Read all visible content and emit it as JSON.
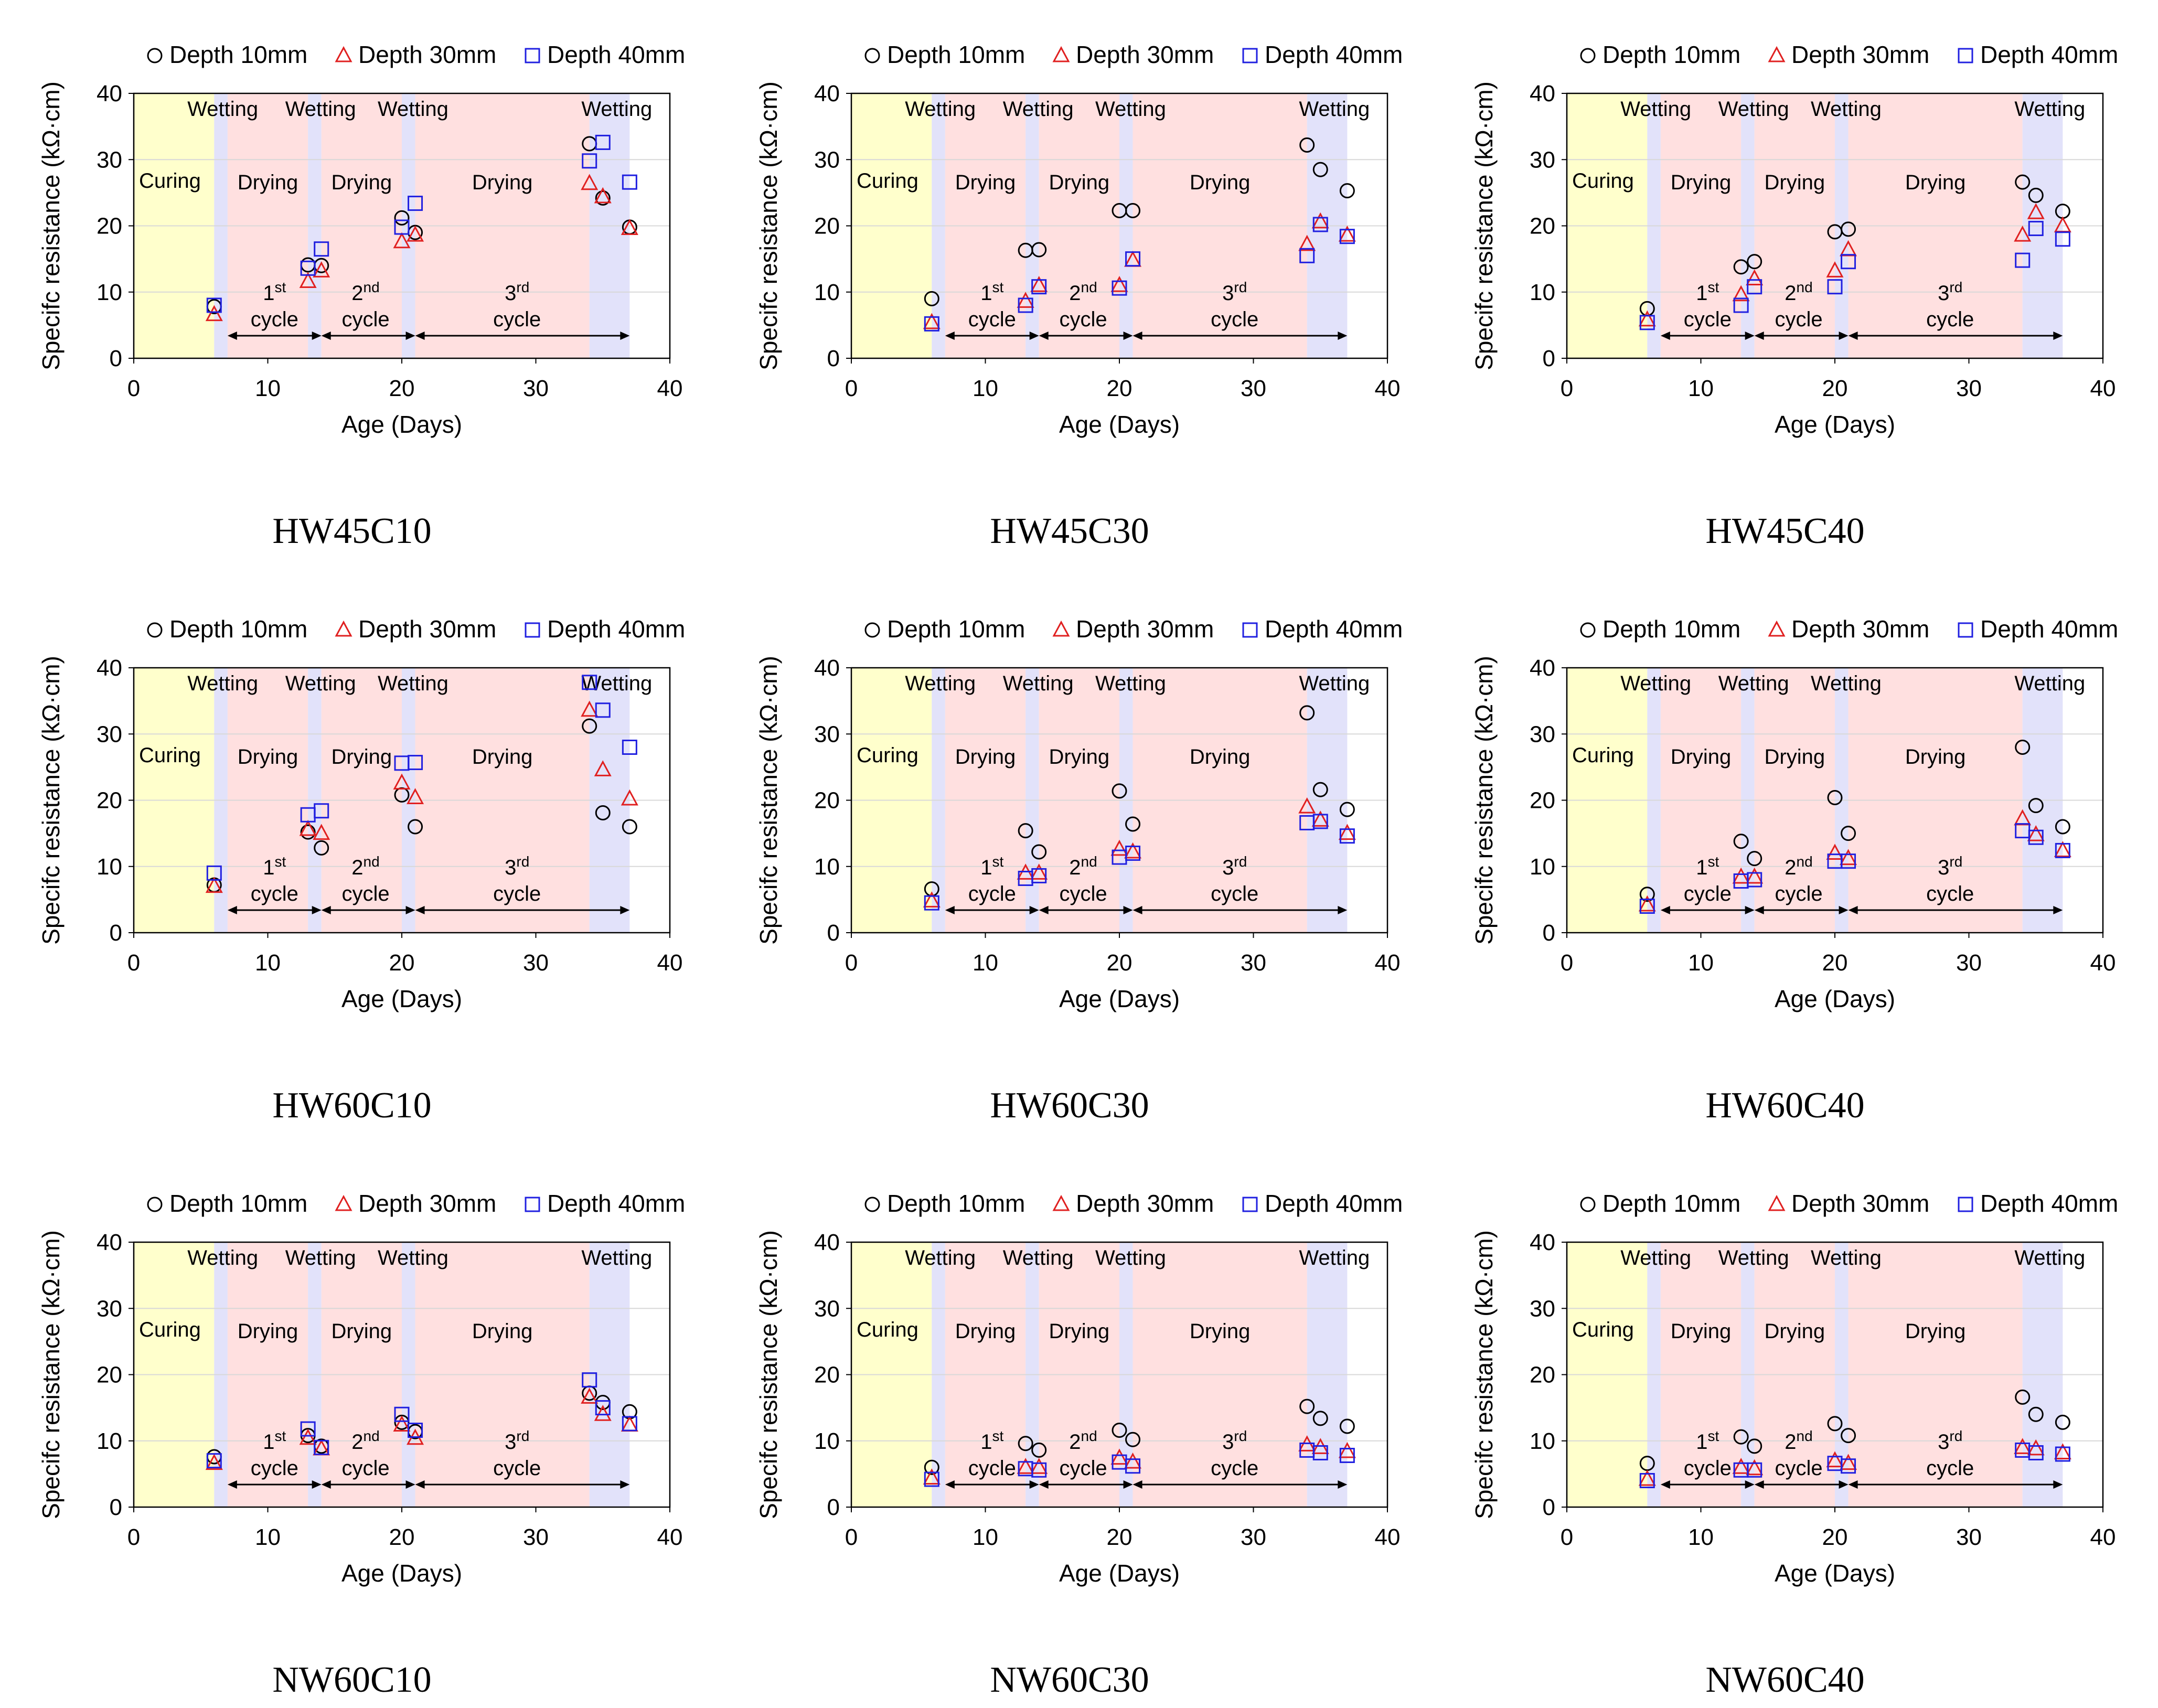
{
  "figure": {
    "x_label": "Age (Days)",
    "y_label": "Specifc resistance (kΩ·cm)",
    "legend": [
      {
        "label": "Depth 10mm",
        "marker": "circle",
        "color": "#000000"
      },
      {
        "label": "Depth 30mm",
        "marker": "triangle",
        "color": "#e02020"
      },
      {
        "label": "Depth 40mm",
        "marker": "square",
        "color": "#2020e0"
      }
    ],
    "phase_labels": {
      "curing": "Curing",
      "wetting": "Wetting",
      "drying": "Drying"
    },
    "cycle_labels": [
      {
        "num": "1",
        "sup": "st",
        "word": "cycle"
      },
      {
        "num": "2",
        "sup": "nd",
        "word": "cycle"
      },
      {
        "num": "3",
        "sup": "rd",
        "word": "cycle"
      }
    ],
    "colors": {
      "curing": "#ffffcc",
      "drying": "#ffe0e0",
      "wetting": "#e2e2fa"
    }
  },
  "chart_data": [
    {
      "type": "scatter",
      "title": "HW45C10",
      "xlim": [
        0,
        40
      ],
      "ylim": [
        0,
        40
      ],
      "xticks": [
        "0",
        "10",
        "20",
        "30",
        "40"
      ],
      "yticks": [
        "0",
        "10",
        "20",
        "30",
        "40"
      ],
      "x": [
        6,
        13,
        14,
        20,
        21,
        34,
        35,
        37
      ],
      "series": [
        {
          "name": "Depth 10mm",
          "values": [
            7.8,
            14.1,
            14.0,
            21.2,
            19.0,
            32.4,
            24.2,
            19.8
          ]
        },
        {
          "name": "Depth 30mm",
          "values": [
            6.6,
            11.6,
            13.2,
            17.6,
            18.6,
            26.4,
            24.4,
            19.6
          ]
        },
        {
          "name": "Depth 40mm",
          "values": [
            8.0,
            13.6,
            16.5,
            19.8,
            23.4,
            29.8,
            32.6,
            26.6
          ]
        }
      ]
    },
    {
      "type": "scatter",
      "title": "HW45C30",
      "xlim": [
        0,
        40
      ],
      "ylim": [
        0,
        40
      ],
      "xticks": [
        "0",
        "10",
        "20",
        "30",
        "40"
      ],
      "yticks": [
        "0",
        "10",
        "20",
        "30",
        "40"
      ],
      "x": [
        6,
        13,
        14,
        20,
        21,
        34,
        35,
        37
      ],
      "series": [
        {
          "name": "Depth 10mm",
          "values": [
            9.0,
            16.3,
            16.4,
            22.3,
            22.3,
            32.2,
            28.5,
            25.3
          ]
        },
        {
          "name": "Depth 30mm",
          "values": [
            5.4,
            8.6,
            11.0,
            11.0,
            14.8,
            17.2,
            20.6,
            18.6
          ]
        },
        {
          "name": "Depth 40mm",
          "values": [
            5.2,
            8.0,
            10.8,
            10.6,
            15.0,
            15.5,
            20.2,
            18.4
          ]
        }
      ]
    },
    {
      "type": "scatter",
      "title": "HW45C40",
      "xlim": [
        0,
        40
      ],
      "ylim": [
        0,
        40
      ],
      "xticks": [
        "0",
        "10",
        "20",
        "30",
        "40"
      ],
      "yticks": [
        "0",
        "10",
        "20",
        "30",
        "40"
      ],
      "x": [
        6,
        13,
        14,
        20,
        21,
        34,
        35,
        37
      ],
      "series": [
        {
          "name": "Depth 10mm",
          "values": [
            7.5,
            13.8,
            14.6,
            19.1,
            19.5,
            26.6,
            24.6,
            22.2
          ]
        },
        {
          "name": "Depth 30mm",
          "values": [
            5.8,
            9.6,
            12.0,
            13.2,
            16.4,
            18.6,
            22.0,
            20.0
          ]
        },
        {
          "name": "Depth 40mm",
          "values": [
            5.4,
            8.0,
            10.8,
            10.8,
            14.6,
            14.8,
            19.6,
            18.0
          ]
        }
      ]
    },
    {
      "type": "scatter",
      "title": "HW60C10",
      "xlim": [
        0,
        40
      ],
      "ylim": [
        0,
        40
      ],
      "xticks": [
        "0",
        "10",
        "20",
        "30",
        "40"
      ],
      "yticks": [
        "0",
        "10",
        "20",
        "30",
        "40"
      ],
      "x": [
        6,
        13,
        14,
        20,
        21,
        34,
        35,
        37
      ],
      "series": [
        {
          "name": "Depth 10mm",
          "values": [
            7.2,
            15.2,
            12.8,
            20.8,
            16.0,
            31.2,
            18.1,
            16.0
          ]
        },
        {
          "name": "Depth 30mm",
          "values": [
            7.0,
            15.6,
            15.0,
            22.6,
            20.4,
            33.6,
            24.6,
            20.2
          ]
        },
        {
          "name": "Depth 40mm",
          "values": [
            9.0,
            17.8,
            18.4,
            25.6,
            25.7,
            37.8,
            33.6,
            28.0
          ]
        }
      ]
    },
    {
      "type": "scatter",
      "title": "HW60C30",
      "xlim": [
        0,
        40
      ],
      "ylim": [
        0,
        40
      ],
      "xticks": [
        "0",
        "10",
        "20",
        "30",
        "40"
      ],
      "yticks": [
        "0",
        "10",
        "20",
        "30",
        "40"
      ],
      "x": [
        6,
        13,
        14,
        20,
        21,
        34,
        35,
        37
      ],
      "series": [
        {
          "name": "Depth 10mm",
          "values": [
            6.6,
            15.4,
            12.2,
            21.4,
            16.4,
            33.2,
            21.6,
            18.6
          ]
        },
        {
          "name": "Depth 30mm",
          "values": [
            4.8,
            9.0,
            9.0,
            12.6,
            12.2,
            19.0,
            17.0,
            15.0
          ]
        },
        {
          "name": "Depth 40mm",
          "values": [
            4.5,
            8.2,
            8.6,
            11.4,
            12.0,
            16.6,
            16.8,
            14.6
          ]
        }
      ]
    },
    {
      "type": "scatter",
      "title": "HW60C40",
      "xlim": [
        0,
        40
      ],
      "ylim": [
        0,
        40
      ],
      "xticks": [
        "0",
        "10",
        "20",
        "30",
        "40"
      ],
      "yticks": [
        "0",
        "10",
        "20",
        "30",
        "40"
      ],
      "x": [
        6,
        13,
        14,
        20,
        21,
        34,
        35,
        37
      ],
      "series": [
        {
          "name": "Depth 10mm",
          "values": [
            5.8,
            13.8,
            11.2,
            20.4,
            15.0,
            28.0,
            19.2,
            16.0
          ]
        },
        {
          "name": "Depth 30mm",
          "values": [
            4.2,
            8.4,
            8.4,
            12.0,
            11.2,
            17.2,
            14.8,
            12.4
          ]
        },
        {
          "name": "Depth 40mm",
          "values": [
            4.0,
            7.8,
            8.0,
            10.8,
            10.8,
            15.4,
            14.4,
            12.4
          ]
        }
      ]
    },
    {
      "type": "scatter",
      "title": "NW60C10",
      "xlim": [
        0,
        40
      ],
      "ylim": [
        0,
        40
      ],
      "xticks": [
        "0",
        "10",
        "20",
        "30",
        "40"
      ],
      "yticks": [
        "0",
        "10",
        "20",
        "30",
        "40"
      ],
      "x": [
        6,
        13,
        14,
        20,
        21,
        34,
        35,
        37
      ],
      "series": [
        {
          "name": "Depth 10mm",
          "values": [
            7.6,
            10.8,
            9.2,
            12.8,
            11.4,
            17.2,
            15.8,
            14.4
          ]
        },
        {
          "name": "Depth 30mm",
          "values": [
            6.6,
            10.4,
            8.8,
            12.4,
            10.4,
            16.6,
            14.0,
            12.4
          ]
        },
        {
          "name": "Depth 40mm",
          "values": [
            7.0,
            11.8,
            9.0,
            14.0,
            11.6,
            19.2,
            15.0,
            12.6
          ]
        }
      ]
    },
    {
      "type": "scatter",
      "title": "NW60C30",
      "xlim": [
        0,
        40
      ],
      "ylim": [
        0,
        40
      ],
      "xticks": [
        "0",
        "10",
        "20",
        "30",
        "40"
      ],
      "yticks": [
        "0",
        "10",
        "20",
        "30",
        "40"
      ],
      "x": [
        6,
        13,
        14,
        20,
        21,
        34,
        35,
        37
      ],
      "series": [
        {
          "name": "Depth 10mm",
          "values": [
            6.0,
            9.6,
            8.6,
            11.6,
            10.2,
            15.2,
            13.4,
            12.2
          ]
        },
        {
          "name": "Depth 30mm",
          "values": [
            4.4,
            6.0,
            6.0,
            7.4,
            6.8,
            9.4,
            9.0,
            8.4
          ]
        },
        {
          "name": "Depth 40mm",
          "values": [
            4.2,
            5.8,
            5.6,
            6.8,
            6.2,
            8.6,
            8.2,
            7.8
          ]
        }
      ]
    },
    {
      "type": "scatter",
      "title": "NW60C40",
      "xlim": [
        0,
        40
      ],
      "ylim": [
        0,
        40
      ],
      "xticks": [
        "0",
        "10",
        "20",
        "30",
        "40"
      ],
      "yticks": [
        "0",
        "10",
        "20",
        "30",
        "40"
      ],
      "x": [
        6,
        13,
        14,
        20,
        21,
        34,
        35,
        37
      ],
      "series": [
        {
          "name": "Depth 10mm",
          "values": [
            6.6,
            10.6,
            9.2,
            12.6,
            10.8,
            16.6,
            14.0,
            12.8
          ]
        },
        {
          "name": "Depth 30mm",
          "values": [
            4.2,
            6.0,
            5.8,
            7.0,
            6.6,
            9.0,
            8.8,
            8.2
          ]
        },
        {
          "name": "Depth 40mm",
          "values": [
            4.0,
            5.6,
            5.6,
            6.6,
            6.2,
            8.6,
            8.2,
            8.0
          ]
        }
      ]
    }
  ]
}
